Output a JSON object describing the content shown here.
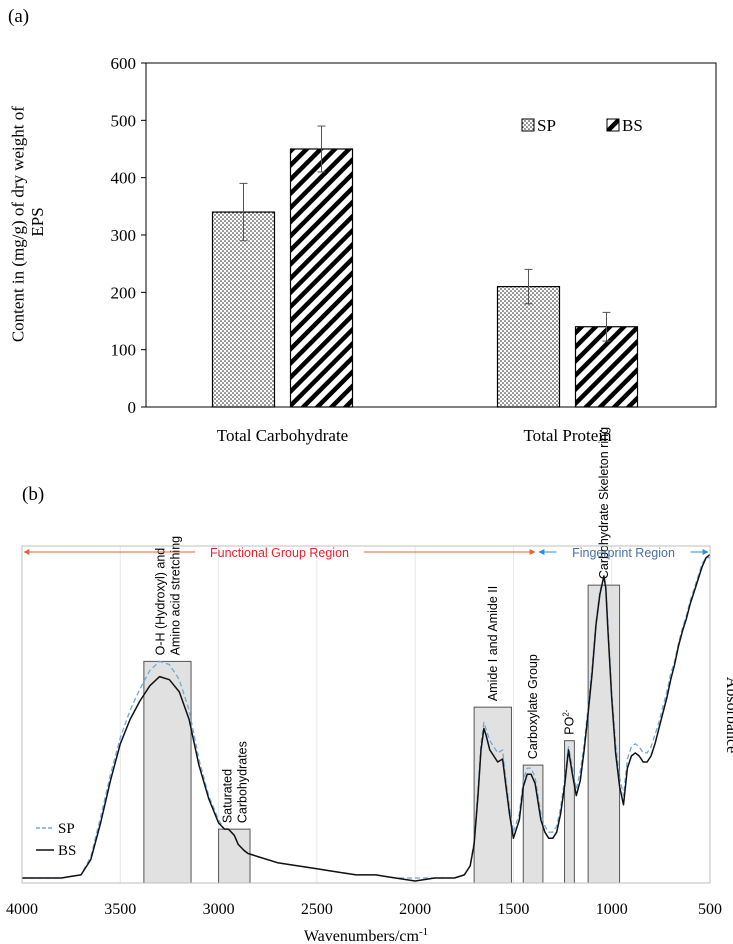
{
  "chart_data": [
    {
      "type": "bar",
      "panel_label": "(a)",
      "title": "",
      "xlabel": "",
      "ylabel": "Content in (mg/g) of dry weight of EPS",
      "ylim": [
        0,
        600
      ],
      "yticks": [
        0,
        100,
        200,
        300,
        400,
        500,
        600
      ],
      "categories": [
        "Total Carbohydrate",
        "Total Protein"
      ],
      "series": [
        {
          "name": "SP",
          "pattern": "dots",
          "values": [
            340,
            210
          ],
          "errors": [
            50,
            30
          ]
        },
        {
          "name": "BS",
          "pattern": "diagonal-stripes",
          "values": [
            450,
            140
          ],
          "errors": [
            40,
            25
          ]
        }
      ],
      "legend_position": "top-right"
    },
    {
      "type": "line",
      "panel_label": "(b)",
      "title": "",
      "xlabel": "Wavenumbers/cm",
      "xlabel_superscript": "-1",
      "ylabel": "Absorbance",
      "xlim": [
        4000,
        500
      ],
      "xticks": [
        4000,
        3500,
        3000,
        2500,
        2000,
        1500,
        1000,
        500
      ],
      "regions": [
        {
          "label": "Functional Group Region",
          "from": 4000,
          "to": 1380,
          "color": "#e8623a",
          "text_color": "#e8232a"
        },
        {
          "label": "Fingerprint Region",
          "from": 1380,
          "to": 500,
          "color": "#2a8fd8",
          "text_color": "#4a6fa5"
        }
      ],
      "annotations": [
        {
          "label": "O-H (Hydroxyl) and",
          "label2": "Amino acid stretching",
          "from": 3380,
          "to": 3140,
          "top": 0.72
        },
        {
          "label": "Saturated",
          "label2": "Carbohydrates",
          "from": 3000,
          "to": 2840,
          "top": 0.17
        },
        {
          "label": "Amide I and Amide II",
          "label2": "",
          "from": 1700,
          "to": 1510,
          "top": 0.57
        },
        {
          "label": "Carboxylate Group",
          "label2": "",
          "from": 1450,
          "to": 1350,
          "top": 0.38
        },
        {
          "label": "PO",
          "label_sup": "2-",
          "label2": "",
          "from": 1240,
          "to": 1190,
          "top": 0.46
        },
        {
          "label": "Carbohydrate Skeleton ring",
          "label2": "",
          "from": 1120,
          "to": 960,
          "top": 0.97
        }
      ],
      "series": [
        {
          "name": "SP",
          "style": "dashed",
          "color": "#6fa8dc",
          "x": [
            4000,
            3900,
            3800,
            3750,
            3700,
            3650,
            3600,
            3550,
            3500,
            3450,
            3400,
            3350,
            3300,
            3250,
            3200,
            3150,
            3100,
            3050,
            3000,
            2970,
            2950,
            2920,
            2900,
            2870,
            2850,
            2800,
            2700,
            2600,
            2500,
            2400,
            2300,
            2200,
            2100,
            2000,
            1900,
            1800,
            1750,
            1720,
            1700,
            1680,
            1665,
            1650,
            1640,
            1620,
            1600,
            1580,
            1555,
            1540,
            1520,
            1500,
            1470,
            1450,
            1430,
            1410,
            1390,
            1360,
            1340,
            1320,
            1300,
            1280,
            1260,
            1240,
            1220,
            1200,
            1180,
            1160,
            1140,
            1120,
            1100,
            1080,
            1060,
            1040,
            1030,
            1020,
            1000,
            980,
            960,
            940,
            920,
            900,
            880,
            860,
            840,
            820,
            800,
            780,
            760,
            740,
            720,
            700,
            680,
            660,
            640,
            620,
            600,
            580,
            560,
            540,
            520,
            500
          ],
          "y": [
            0.01,
            0.01,
            0.01,
            0.015,
            0.02,
            0.08,
            0.21,
            0.35,
            0.47,
            0.56,
            0.63,
            0.69,
            0.72,
            0.71,
            0.66,
            0.56,
            0.4,
            0.28,
            0.2,
            0.17,
            0.17,
            0.15,
            0.12,
            0.1,
            0.09,
            0.08,
            0.06,
            0.05,
            0.04,
            0.03,
            0.02,
            0.02,
            0.01,
            0.01,
            0.01,
            0.01,
            0.02,
            0.05,
            0.13,
            0.3,
            0.45,
            0.52,
            0.5,
            0.46,
            0.44,
            0.42,
            0.43,
            0.34,
            0.24,
            0.16,
            0.22,
            0.33,
            0.37,
            0.37,
            0.34,
            0.22,
            0.18,
            0.16,
            0.16,
            0.18,
            0.24,
            0.33,
            0.44,
            0.37,
            0.3,
            0.36,
            0.45,
            0.57,
            0.7,
            0.85,
            0.95,
            1.0,
            0.97,
            0.85,
            0.62,
            0.45,
            0.34,
            0.28,
            0.4,
            0.44,
            0.45,
            0.44,
            0.42,
            0.42,
            0.44,
            0.48,
            0.52,
            0.57,
            0.62,
            0.68,
            0.72,
            0.78,
            0.83,
            0.87,
            0.92,
            0.96,
            1.0,
            1.04,
            1.06,
            1.06
          ]
        },
        {
          "name": "BS",
          "style": "solid",
          "color": "#111111",
          "x": [
            4000,
            3900,
            3800,
            3750,
            3700,
            3650,
            3600,
            3550,
            3500,
            3450,
            3400,
            3350,
            3300,
            3250,
            3200,
            3150,
            3100,
            3050,
            3000,
            2970,
            2950,
            2920,
            2900,
            2870,
            2850,
            2800,
            2700,
            2600,
            2500,
            2400,
            2300,
            2200,
            2100,
            2000,
            1900,
            1800,
            1750,
            1720,
            1700,
            1680,
            1665,
            1650,
            1640,
            1620,
            1600,
            1580,
            1555,
            1540,
            1520,
            1500,
            1470,
            1450,
            1430,
            1410,
            1390,
            1360,
            1340,
            1320,
            1300,
            1280,
            1260,
            1240,
            1220,
            1200,
            1180,
            1160,
            1140,
            1120,
            1100,
            1080,
            1060,
            1040,
            1030,
            1020,
            1000,
            980,
            960,
            940,
            920,
            900,
            880,
            860,
            840,
            820,
            800,
            780,
            760,
            740,
            720,
            700,
            680,
            660,
            640,
            620,
            600,
            580,
            560,
            540,
            520,
            500
          ],
          "y": [
            0.01,
            0.01,
            0.01,
            0.015,
            0.02,
            0.07,
            0.19,
            0.33,
            0.45,
            0.53,
            0.59,
            0.64,
            0.67,
            0.66,
            0.62,
            0.53,
            0.38,
            0.27,
            0.19,
            0.17,
            0.17,
            0.15,
            0.12,
            0.1,
            0.09,
            0.08,
            0.06,
            0.05,
            0.04,
            0.03,
            0.02,
            0.02,
            0.01,
            0.0,
            0.01,
            0.01,
            0.02,
            0.05,
            0.12,
            0.28,
            0.43,
            0.5,
            0.48,
            0.43,
            0.41,
            0.39,
            0.4,
            0.32,
            0.22,
            0.14,
            0.2,
            0.31,
            0.35,
            0.35,
            0.32,
            0.2,
            0.16,
            0.14,
            0.14,
            0.16,
            0.22,
            0.31,
            0.43,
            0.35,
            0.28,
            0.33,
            0.43,
            0.55,
            0.68,
            0.84,
            0.94,
            1.0,
            0.96,
            0.83,
            0.6,
            0.42,
            0.31,
            0.25,
            0.37,
            0.41,
            0.42,
            0.41,
            0.39,
            0.39,
            0.41,
            0.45,
            0.5,
            0.55,
            0.6,
            0.66,
            0.71,
            0.77,
            0.82,
            0.86,
            0.91,
            0.95,
            0.99,
            1.03,
            1.06,
            1.07
          ]
        }
      ],
      "legend_position": "bottom-left"
    }
  ]
}
